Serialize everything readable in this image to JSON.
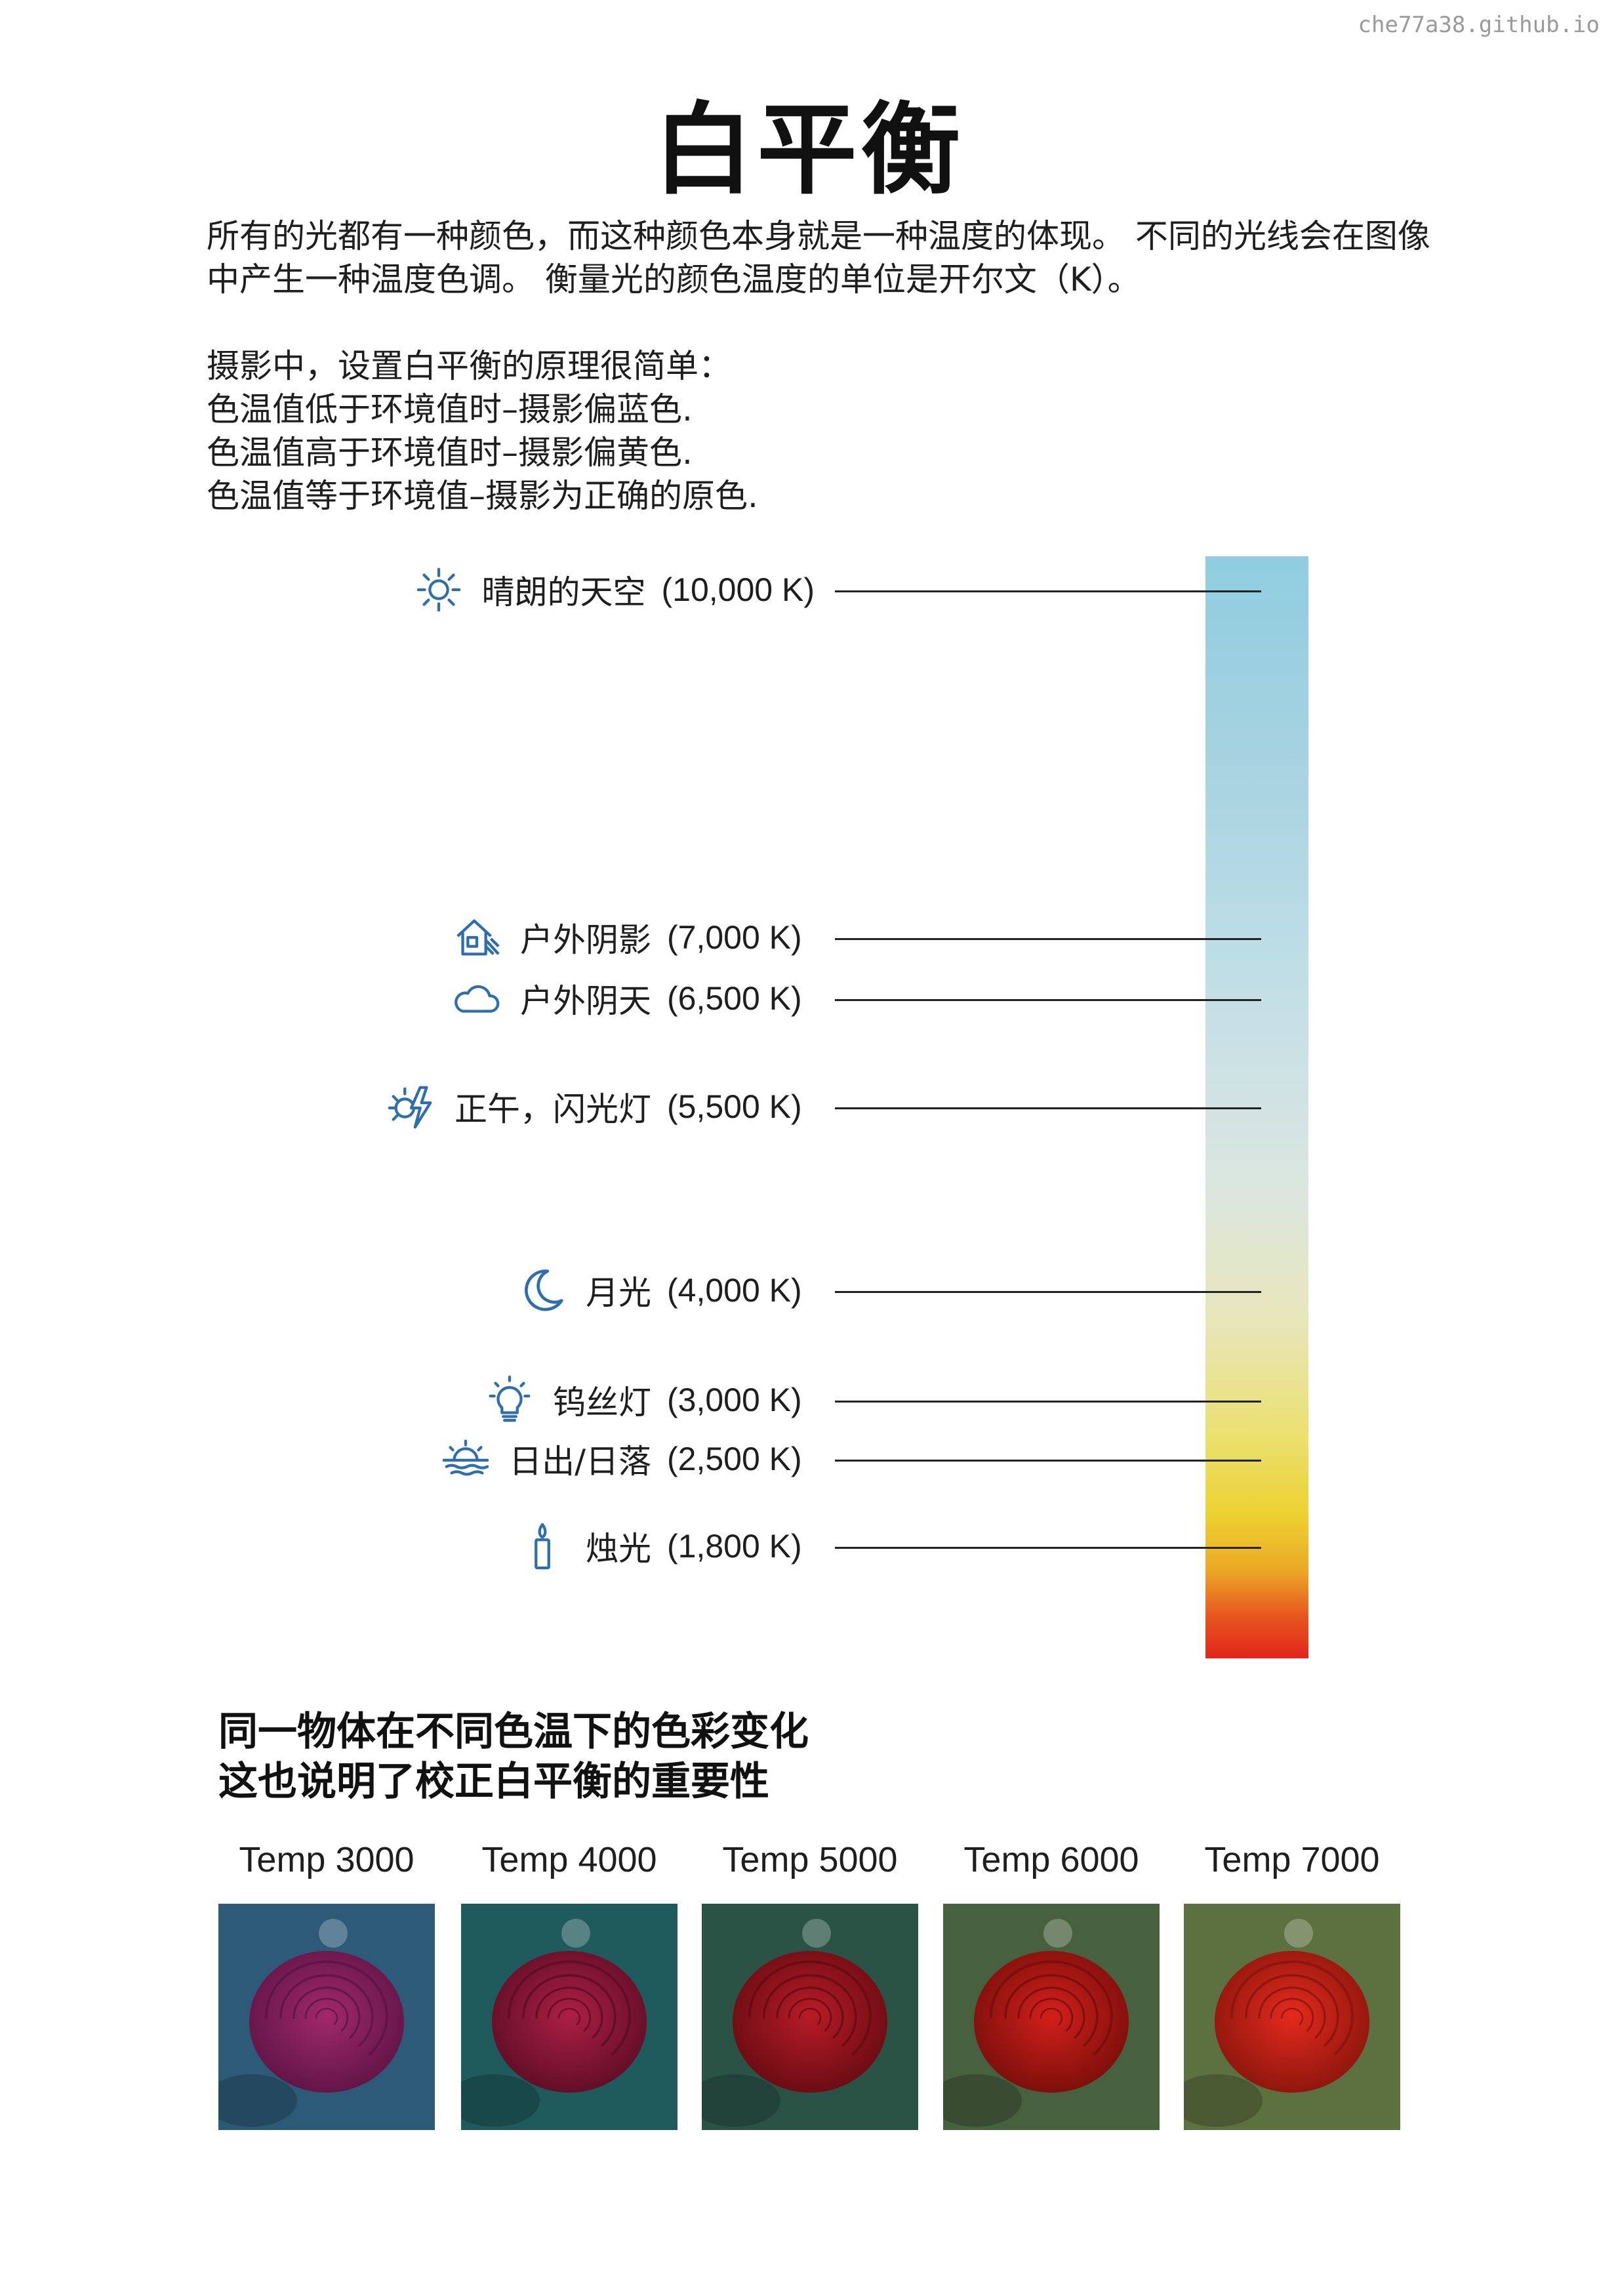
{
  "watermark": "che77a38.github.io",
  "title": "白平衡",
  "intro": {
    "paragraph1": "所有的光都有一种颜色，而这种颜色本身就是一种温度的体现。 不同的光线会在图像中产生一种温度色调。 衡量光的颜色温度的单位是开尔文（K）。",
    "paragraph2_lines": [
      "摄影中，设置白平衡的原理很简单：",
      "色温值低于环境值时–摄影偏蓝色.",
      "色温值高于环境值时–摄影偏黄色.",
      "色温值等于环境值–摄影为正确的原色."
    ]
  },
  "scale": [
    {
      "name": "晴朗的天空",
      "kelvin": "(10,000 K)",
      "icon": "sun-icon"
    },
    {
      "name": "户外阴影",
      "kelvin": "(7,000 K)",
      "icon": "house-shade-icon"
    },
    {
      "name": "户外阴天",
      "kelvin": "(6,500 K)",
      "icon": "cloud-icon"
    },
    {
      "name": "正午，闪光灯",
      "kelvin": "(5,500 K)",
      "icon": "flash-icon"
    },
    {
      "name": "月光",
      "kelvin": "(4,000 K)",
      "icon": "moon-icon"
    },
    {
      "name": "钨丝灯",
      "kelvin": "(3,000 K)",
      "icon": "lightbulb-icon"
    },
    {
      "name": "日出/日落",
      "kelvin": "(2,500 K)",
      "icon": "sunset-icon"
    },
    {
      "name": "烛光",
      "kelvin": "(1,800 K)",
      "icon": "candle-icon"
    }
  ],
  "colors": {
    "icon": "#2f6ead",
    "bar_top": "#8fcde0",
    "bar_middle": "#dce6df",
    "bar_yellow": "#ecd132",
    "bar_bottom": "#e2251c"
  },
  "comparison": {
    "heading_lines": [
      "同一物体在不同色温下的色彩变化",
      "这也说明了校正白平衡的重要性"
    ],
    "photos": [
      {
        "label": "Temp 3000",
        "bg": "#2c5a77",
        "petal": "#a1296b",
        "dark": "#5d1445"
      },
      {
        "label": "Temp 4000",
        "bg": "#1f5a5c",
        "petal": "#ac1f45",
        "dark": "#5c0d26"
      },
      {
        "label": "Temp 5000",
        "bg": "#2a5346",
        "petal": "#b81c27",
        "dark": "#650b12"
      },
      {
        "label": "Temp 6000",
        "bg": "#47603e",
        "petal": "#d3201c",
        "dark": "#760e0a"
      },
      {
        "label": "Temp 7000",
        "bg": "#5d703f",
        "petal": "#e52a1e",
        "dark": "#87150c"
      }
    ]
  }
}
